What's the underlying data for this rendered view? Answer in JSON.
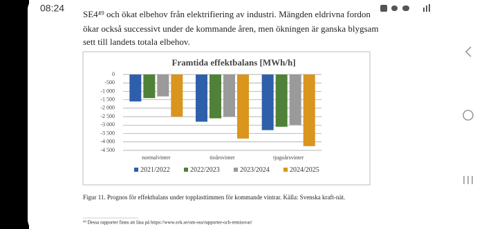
{
  "status_bar": {
    "time": "08:24"
  },
  "document": {
    "paragraph_lines": [
      "SE4⁴⁹ och ökat elbehov från elektrifiering av industri. Mängden eldrivna fordon",
      "ökar också successivt under de kommande åren, men ökningen är ganska blygsam",
      "sett till landets totala elbehov."
    ],
    "caption": "Figur 11. Prognos för effektbalans under topplasttimmen för kommande vintrar. Källa: Svenska kraft-nät.",
    "footnote": "⁴⁹ Dessa rapporter finns att läsa på https://www.svk.se/om-oss/rapporter-och-remissvar/"
  },
  "chart_data": {
    "type": "bar",
    "title": "Framtida effektbalans [MWh/h]",
    "categories": [
      "normalvinter",
      "tioårsvinter",
      "tjugoårsvinter"
    ],
    "series": [
      {
        "name": "2021/2022",
        "color": "#2f5fab",
        "values": [
          -1600,
          -2800,
          -3300
        ]
      },
      {
        "name": "2022/2023",
        "color": "#4f8138",
        "values": [
          -1400,
          -2600,
          -3100
        ]
      },
      {
        "name": "2023/2024",
        "color": "#9a9a9a",
        "values": [
          -1300,
          -2500,
          -3000
        ]
      },
      {
        "name": "2024/2025",
        "color": "#d9951e",
        "values": [
          -2500,
          -3800,
          -4250
        ]
      }
    ],
    "ylim": [
      -4500,
      0
    ],
    "yticks": [
      0,
      -500,
      {
        "value": -1000,
        "label": "-1 000"
      },
      {
        "value": -1500,
        "label": "-1 500"
      },
      {
        "value": -2000,
        "label": "-2 000"
      },
      {
        "value": -2500,
        "label": "-2 500"
      },
      {
        "value": -3000,
        "label": "-3 000"
      },
      {
        "value": -3500,
        "label": "-3 500"
      },
      {
        "value": -4000,
        "label": "-4 000"
      },
      {
        "value": -4500,
        "label": "-4 500"
      }
    ],
    "grid": true,
    "legend": "bottom"
  }
}
